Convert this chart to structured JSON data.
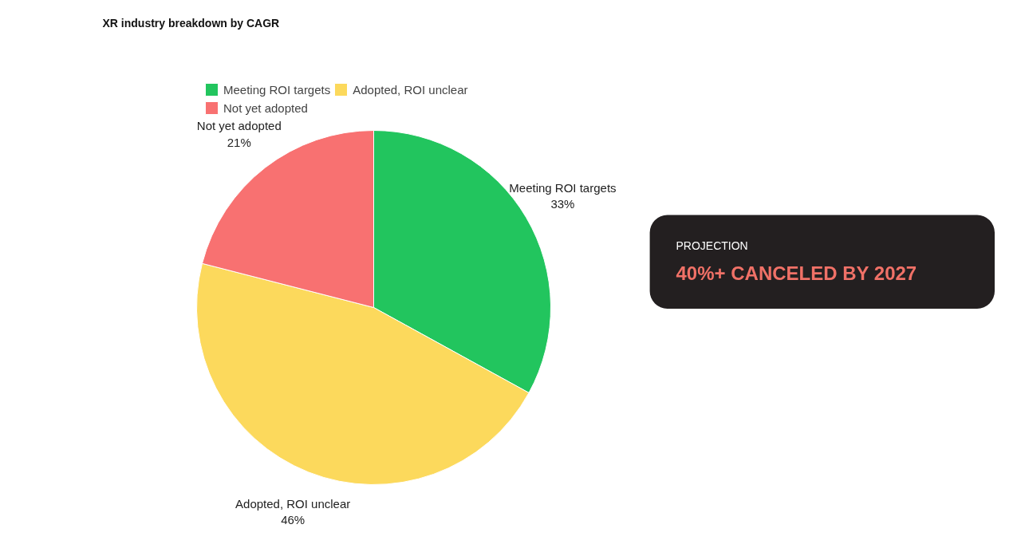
{
  "chart_data": [
    {
      "type": "pie",
      "title": "XR industry breakdown by CAGR",
      "categories": [
        "Meeting ROI targets",
        "Adopted, ROI unclear",
        "Not yet adopted"
      ],
      "values": [
        33,
        46,
        21
      ],
      "colors": [
        "#22c55e",
        "#fcd95c",
        "#f87171"
      ],
      "value_labels": [
        "33%",
        "46%",
        "21%"
      ],
      "legend": "top"
    },
    {
      "type": "other",
      "title": "PROJECTION",
      "annotations": [
        "40%+ CANCELED BY 2027"
      ]
    }
  ]
}
